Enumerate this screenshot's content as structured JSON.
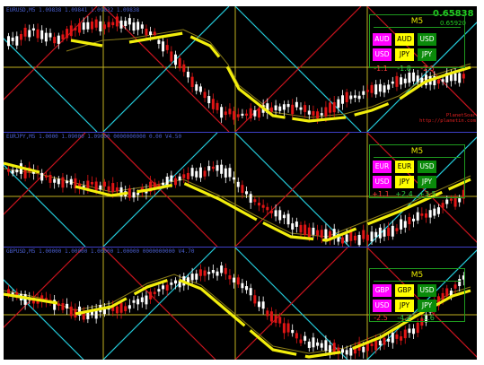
{
  "colors": {
    "background": "#000000",
    "candle_up": "#ffffff",
    "candle_down": "#e01515",
    "gann_cyan": "#24c9d8",
    "gann_red": "#c8141e",
    "gann_yellow": "#c0b020",
    "ma_yellow": "#f2ee0c",
    "ma_olive": "#8a7c18",
    "pair_magenta": "#ff00ff",
    "pair_yellow": "#ffff00",
    "pair_green": "#0a8a0a",
    "box_border": "#1e9a1e",
    "label_green": "#2ecc40",
    "label_red": "#ff3a3a"
  },
  "panels": [
    {
      "id": "top",
      "title": "EURUSD,M5 1.09838 1.09841 1.09832 1.09838",
      "price": "0.65838",
      "price_sub": "0.65920",
      "timeframe": "M5",
      "row1": [
        "AUD",
        "AUD",
        "USD"
      ],
      "row2": [
        "USD",
        "JPY",
        "JPY"
      ],
      "diffs": [
        "-1.1",
        "-1.8",
        "-2.5"
      ],
      "diff_colors": [
        "label_red",
        "label_green",
        "label_red"
      ],
      "brand": [
        "PlanetSoar",
        "http://planetin.com"
      ]
    },
    {
      "id": "middle",
      "title": "EURJPY,M5 1.0000 1.09000 1.09000 0000000000 0.00 V4.50",
      "timeframe": "M5",
      "row1": [
        "EUR",
        "EUR",
        "USD"
      ],
      "row2": [
        "USD",
        "JPY",
        "JPY"
      ],
      "diffs": [
        "+1.1",
        "+2.4",
        "+3.5"
      ],
      "diff_colors": [
        "label_red",
        "label_green",
        "label_green"
      ]
    },
    {
      "id": "bottom",
      "title": "GBPUSD,M5 1.00000 1.00000 1.00000 1.00000 0000000000 V4.70",
      "timeframe": "M5",
      "row1": [
        "GBP",
        "GBP",
        "USD"
      ],
      "row2": [
        "USD",
        "JPY",
        "JPY"
      ],
      "diffs": [
        "-2.5",
        "-4.2",
        "-1.6"
      ],
      "diff_colors": [
        "label_red",
        "label_green",
        "label_green"
      ]
    }
  ]
}
